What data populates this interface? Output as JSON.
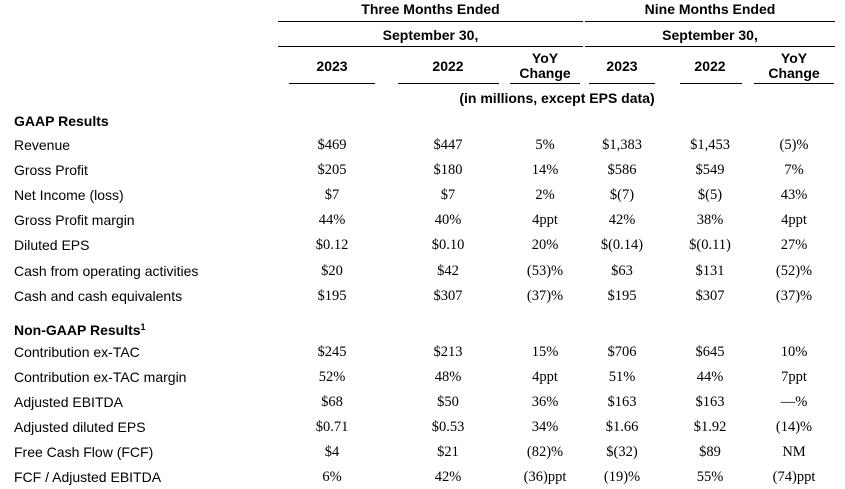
{
  "header": {
    "three_months": "Three Months Ended",
    "nine_months": "Nine Months Ended",
    "period_end": "September 30,",
    "columns": [
      "2023",
      "2022",
      "YoY\nChange",
      "2023",
      "2022",
      "YoY\nChange"
    ],
    "units_note": "(in millions, except EPS data)"
  },
  "sections": [
    {
      "title": "GAAP Results",
      "footnote": "",
      "rows": [
        {
          "label": "Revenue",
          "values": [
            "$469",
            "$447",
            "5%",
            "$1,383",
            "$1,453",
            "(5)%"
          ]
        },
        {
          "label": "Gross Profit",
          "values": [
            "$205",
            "$180",
            "14%",
            "$586",
            "$549",
            "7%"
          ]
        },
        {
          "label": "Net Income (loss)",
          "values": [
            "$7",
            "$7",
            "2%",
            "$(7)",
            "$(5)",
            "43%"
          ]
        },
        {
          "label": "Gross Profit margin",
          "values": [
            "44%",
            "40%",
            "4ppt",
            "42%",
            "38%",
            "4ppt"
          ]
        },
        {
          "label": "Diluted EPS",
          "values": [
            "$0.12",
            "$0.10",
            "20%",
            "$(0.14)",
            "$(0.11)",
            "27%"
          ]
        },
        {
          "label": "Cash from operating activities",
          "values": [
            "$20",
            "$42",
            "(53)%",
            "$63",
            "$131",
            "(52)%"
          ]
        },
        {
          "label": "Cash and cash equivalents",
          "values": [
            "$195",
            "$307",
            "(37)%",
            "$195",
            "$307",
            "(37)%"
          ]
        }
      ]
    },
    {
      "title": "Non-GAAP Results",
      "footnote": "1",
      "rows": [
        {
          "label": "Contribution ex-TAC",
          "values": [
            "$245",
            "$213",
            "15%",
            "$706",
            "$645",
            "10%"
          ]
        },
        {
          "label": "Contribution ex-TAC margin",
          "values": [
            "52%",
            "48%",
            "4ppt",
            "51%",
            "44%",
            "7ppt"
          ]
        },
        {
          "label": "Adjusted EBITDA",
          "values": [
            "$68",
            "$50",
            "36%",
            "$163",
            "$163",
            "—%"
          ]
        },
        {
          "label": "Adjusted diluted EPS",
          "values": [
            "$0.71",
            "$0.53",
            "34%",
            "$1.66",
            "$1.92",
            "(14)%"
          ]
        },
        {
          "label": "Free Cash Flow (FCF)",
          "values": [
            "$4",
            "$21",
            "(82)%",
            "$(32)",
            "$89",
            "NM"
          ]
        },
        {
          "label": "FCF / Adjusted EBITDA",
          "values": [
            "6%",
            "42%",
            "(36)ppt",
            "(19)%",
            "55%",
            "(74)ppt"
          ]
        }
      ]
    }
  ]
}
